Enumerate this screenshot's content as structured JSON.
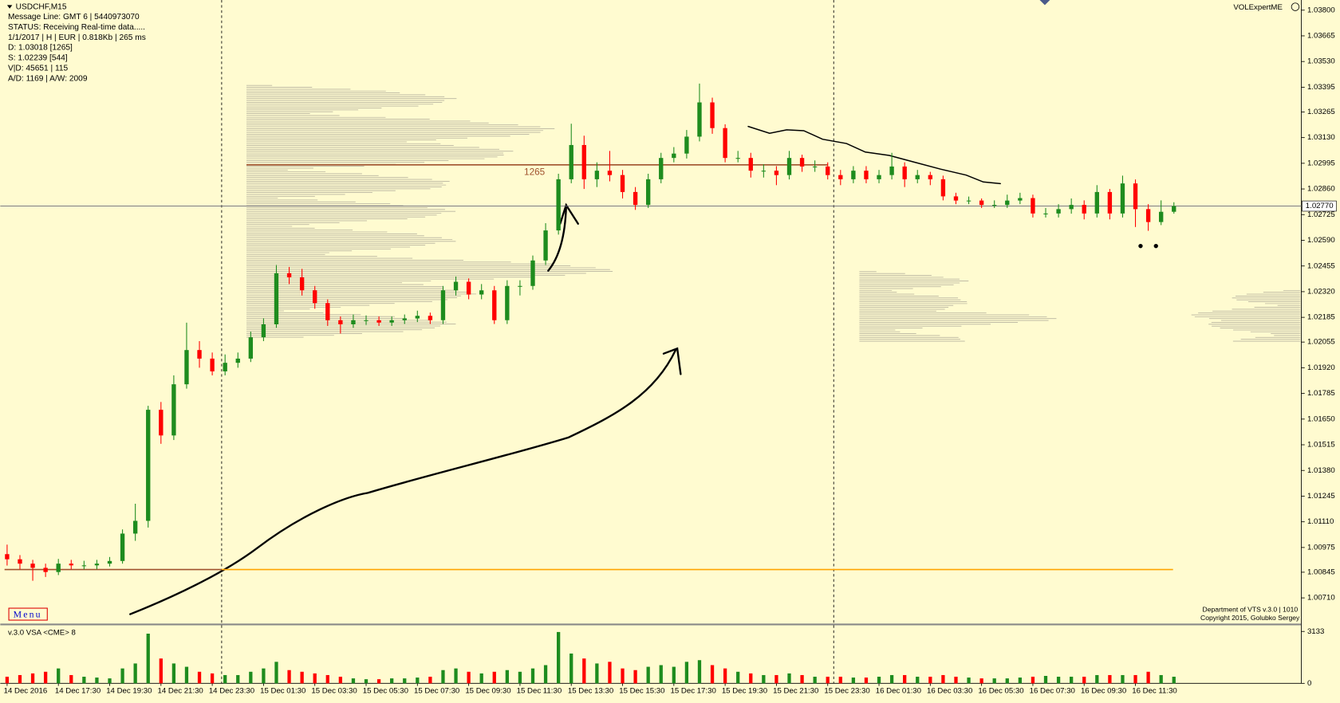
{
  "chart_data": [
    {
      "type": "candlestick",
      "title": "USDCHF,M15",
      "info_lines": [
        "Message Line: GMT 6 | 5440973070",
        "STATUS:  Receiving Real-time data.....",
        "1/1/2017 | H | EUR | 0.818Kb | 265 ms",
        "D: 1.03018  [1265]",
        "S: 1.02239  [544]",
        "V|D: 45651 | 115",
        "A/D: 1169 | A/W: 2009"
      ],
      "indicator": "VOLExpertME",
      "menu": "Menu",
      "footer": [
        "Department of VTS  v.3.0 | 1010",
        "Copyright 2015, Golubko Sergey"
      ],
      "categories": [
        "14 Dec 2016",
        null,
        null,
        null,
        "14 Dec 17:30",
        null,
        null,
        null,
        "14 Dec 19:30",
        null,
        null,
        null,
        "14 Dec 21:30",
        null,
        null,
        null,
        "14 Dec 23:30",
        null,
        null,
        null,
        "15 Dec 01:30",
        null,
        null,
        null,
        "15 Dec 03:30",
        null,
        null,
        null,
        "15 Dec 05:30",
        null,
        null,
        null,
        "15 Dec 07:30",
        null,
        null,
        null,
        "15 Dec 09:30",
        null,
        null,
        null,
        "15 Dec 11:30",
        null,
        null,
        null,
        "15 Dec 13:30",
        null,
        null,
        null,
        "15 Dec 15:30",
        null,
        null,
        null,
        "15 Dec 17:30",
        null,
        null,
        null,
        "15 Dec 19:30",
        null,
        null,
        null,
        "15 Dec 21:30",
        null,
        null,
        null,
        "15 Dec 23:30",
        null,
        null,
        null,
        "16 Dec 01:30",
        null,
        null,
        null,
        "16 Dec 03:30",
        null,
        null,
        null,
        "16 Dec 05:30",
        null,
        null,
        null,
        "16 Dec 07:30",
        null,
        null,
        null,
        "16 Dec 09:30",
        null,
        null,
        null,
        "16 Dec 11:30",
        null,
        null,
        null
      ],
      "open": [
        1.0094,
        1.00913,
        1.0089,
        1.00868,
        1.00846,
        1.0089,
        1.00881,
        1.00881,
        1.0089,
        1.00904,
        1.01048,
        1.01115,
        1.01699,
        1.01564,
        1.01833,
        1.02013,
        1.01968,
        1.01901,
        1.01946,
        1.01968,
        1.0208,
        1.02148,
        1.02417,
        1.02395,
        1.02327,
        1.0226,
        1.0217,
        1.02148,
        1.0217,
        1.0217,
        1.02157,
        1.0217,
        1.02179,
        1.02193,
        1.0217,
        1.02327,
        1.02372,
        1.02305,
        1.02327,
        1.0217,
        1.0235,
        1.0235,
        1.02484,
        1.02642,
        1.02911,
        1.03091,
        1.02911,
        1.02956,
        1.02933,
        1.02844,
        1.02776,
        1.02911,
        1.03023,
        1.03046,
        1.03135,
        1.03315,
        1.0318,
        1.03023,
        1.03023,
        1.02956,
        1.02956,
        1.02933,
        1.03023,
        1.02978,
        1.02978,
        1.02933,
        1.02911,
        1.02956,
        1.02911,
        1.02933,
        1.02978,
        1.02911,
        1.02933,
        1.02911,
        1.02821,
        1.02799,
        1.02799,
        1.02776,
        1.02776,
        1.02799,
        1.02812,
        1.02731,
        1.02731,
        1.02754,
        1.02776,
        1.02731,
        1.02844,
        1.02731,
        1.02889,
        1.02754,
        1.02686,
        1.0274
      ],
      "high": [
        1.0099,
        1.00935,
        1.0091,
        1.0089,
        1.00915,
        1.0091,
        1.00905,
        1.0091,
        1.00925,
        1.0107,
        1.01205,
        1.0172,
        1.0174,
        1.0188,
        1.02157,
        1.0206,
        1.02,
        1.0199,
        1.02,
        1.0211,
        1.0218,
        1.0246,
        1.0245,
        1.0244,
        1.0235,
        1.0228,
        1.0219,
        1.022,
        1.02195,
        1.0219,
        1.0219,
        1.022,
        1.0222,
        1.0221,
        1.0235,
        1.024,
        1.0239,
        1.0236,
        1.0235,
        1.0238,
        1.0238,
        1.0251,
        1.0268,
        1.0294,
        1.03203,
        1.0314,
        1.03,
        1.0306,
        1.0296,
        1.0287,
        1.0294,
        1.0305,
        1.0308,
        1.0317,
        1.03414,
        1.0334,
        1.032,
        1.0306,
        1.0305,
        1.0299,
        1.0298,
        1.0306,
        1.0304,
        1.0301,
        1.03,
        1.0296,
        1.0298,
        1.0298,
        1.0296,
        1.0305,
        1.03,
        1.0296,
        1.0295,
        1.0293,
        1.0284,
        1.0282,
        1.0281,
        1.028,
        1.0283,
        1.0284,
        1.0283,
        1.0276,
        1.0278,
        1.0281,
        1.028,
        1.0288,
        1.0286,
        1.0293,
        1.0291,
        1.0278,
        1.028,
        1.0279
      ],
      "low": [
        1.0088,
        1.0086,
        1.008,
        1.0082,
        1.0083,
        1.0086,
        1.0086,
        1.0086,
        1.00875,
        1.0089,
        1.0101,
        1.0108,
        1.0152,
        1.0154,
        1.0181,
        1.0192,
        1.0188,
        1.0188,
        1.0192,
        1.0195,
        1.0206,
        1.0213,
        1.0236,
        1.023,
        1.0223,
        1.0214,
        1.021,
        1.0213,
        1.02145,
        1.0214,
        1.0214,
        1.0215,
        1.0216,
        1.0215,
        1.0215,
        1.023,
        1.0228,
        1.0228,
        1.0215,
        1.0215,
        1.023,
        1.0233,
        1.0246,
        1.0262,
        1.0289,
        1.0286,
        1.0287,
        1.029,
        1.0281,
        1.0275,
        1.0276,
        1.0289,
        1.03,
        1.0302,
        1.0311,
        1.0315,
        1.03,
        1.03,
        1.0292,
        1.0292,
        1.0288,
        1.0291,
        1.0295,
        1.0295,
        1.0291,
        1.0288,
        1.0289,
        1.0289,
        1.0289,
        1.0291,
        1.0287,
        1.0289,
        1.0288,
        1.028,
        1.0278,
        1.0278,
        1.0276,
        1.0276,
        1.0276,
        1.0278,
        1.0271,
        1.0271,
        1.0271,
        1.0273,
        1.027,
        1.0271,
        1.027,
        1.0271,
        1.0266,
        1.0264,
        1.0267,
        1.0273
      ],
      "close": [
        1.00913,
        1.0089,
        1.00868,
        1.00846,
        1.0089,
        1.00881,
        1.00881,
        1.0089,
        1.00904,
        1.01048,
        1.01115,
        1.01699,
        1.01564,
        1.01833,
        1.02013,
        1.01968,
        1.01901,
        1.01946,
        1.01968,
        1.0208,
        1.02148,
        1.02417,
        1.02395,
        1.02327,
        1.0226,
        1.0217,
        1.02148,
        1.0217,
        1.0217,
        1.02157,
        1.0217,
        1.02179,
        1.02193,
        1.0217,
        1.02327,
        1.02372,
        1.02305,
        1.02327,
        1.0217,
        1.0235,
        1.0235,
        1.02484,
        1.02642,
        1.02911,
        1.03091,
        1.02911,
        1.02956,
        1.02933,
        1.02844,
        1.02776,
        1.02911,
        1.03023,
        1.03046,
        1.03135,
        1.03315,
        1.0318,
        1.03023,
        1.03023,
        1.02956,
        1.02956,
        1.02933,
        1.03023,
        1.02978,
        1.02978,
        1.02933,
        1.02911,
        1.02956,
        1.02911,
        1.02933,
        1.02978,
        1.02911,
        1.02933,
        1.02911,
        1.02821,
        1.02799,
        1.02799,
        1.02776,
        1.02776,
        1.02799,
        1.02812,
        1.02731,
        1.02731,
        1.02754,
        1.02776,
        1.02731,
        1.02844,
        1.02731,
        1.02889,
        1.02754,
        1.02686,
        1.0274,
        1.0277
      ],
      "up_color": "#1e8c1e",
      "down_color": "#ff0000",
      "ylim": [
        1.00575,
        1.03831
      ],
      "yticks": [
        {
          "value": 1.038,
          "label": "1.03800"
        },
        {
          "value": 1.03665,
          "label": "1.03665"
        },
        {
          "value": 1.0353,
          "label": "1.03530"
        },
        {
          "value": 1.03395,
          "label": "1.03395"
        },
        {
          "value": 1.03265,
          "label": "1.03265"
        },
        {
          "value": 1.0313,
          "label": "1.03130"
        },
        {
          "value": 1.02995,
          "label": "1.02995"
        },
        {
          "value": 1.0286,
          "label": "1.02860"
        },
        {
          "value": 1.02725,
          "label": "1.02725"
        },
        {
          "value": 1.0259,
          "label": "1.02590"
        },
        {
          "value": 1.02455,
          "label": "1.02455"
        },
        {
          "value": 1.0232,
          "label": "1.02320"
        },
        {
          "value": 1.02185,
          "label": "1.02185"
        },
        {
          "value": 1.02055,
          "label": "1.02055"
        },
        {
          "value": 1.0192,
          "label": "1.01920"
        },
        {
          "value": 1.01785,
          "label": "1.01785"
        },
        {
          "value": 1.0165,
          "label": "1.01650"
        },
        {
          "value": 1.01515,
          "label": "1.01515"
        },
        {
          "value": 1.0138,
          "label": "1.01380"
        },
        {
          "value": 1.01245,
          "label": "1.01245"
        },
        {
          "value": 1.0111,
          "label": "1.01110"
        },
        {
          "value": 1.00975,
          "label": "1.00975"
        },
        {
          "value": 1.00845,
          "label": "1.00845"
        },
        {
          "value": 1.0071,
          "label": "1.00710"
        }
      ],
      "last_price": {
        "value": 1.0277,
        "label": "1.02770"
      },
      "levels": [
        {
          "value": 1.02987,
          "label": "1265",
          "color": "#a0522d"
        },
        {
          "value": 1.00859,
          "color": "#ffa500"
        }
      ]
    },
    {
      "type": "bar",
      "title": "v.3.0 VSA <CME> 8",
      "values": [
        400,
        500,
        600,
        700,
        900,
        500,
        400,
        350,
        300,
        900,
        1200,
        3000,
        1500,
        1200,
        1000,
        700,
        600,
        500,
        500,
        700,
        900,
        1300,
        800,
        700,
        600,
        500,
        400,
        300,
        250,
        250,
        300,
        300,
        350,
        400,
        800,
        900,
        700,
        600,
        700,
        800,
        700,
        900,
        1100,
        3100,
        1800,
        1500,
        1200,
        1300,
        900,
        800,
        1000,
        1100,
        1000,
        1300,
        1400,
        1100,
        900,
        700,
        600,
        500,
        500,
        600,
        500,
        400,
        400,
        400,
        350,
        350,
        400,
        500,
        500,
        400,
        400,
        500,
        400,
        350,
        300,
        300,
        300,
        350,
        400,
        450,
        400,
        400,
        400,
        500,
        500,
        500,
        500,
        700,
        500,
        400
      ],
      "ylim": [
        0,
        3300
      ],
      "yticks": [
        0,
        3133
      ]
    }
  ]
}
